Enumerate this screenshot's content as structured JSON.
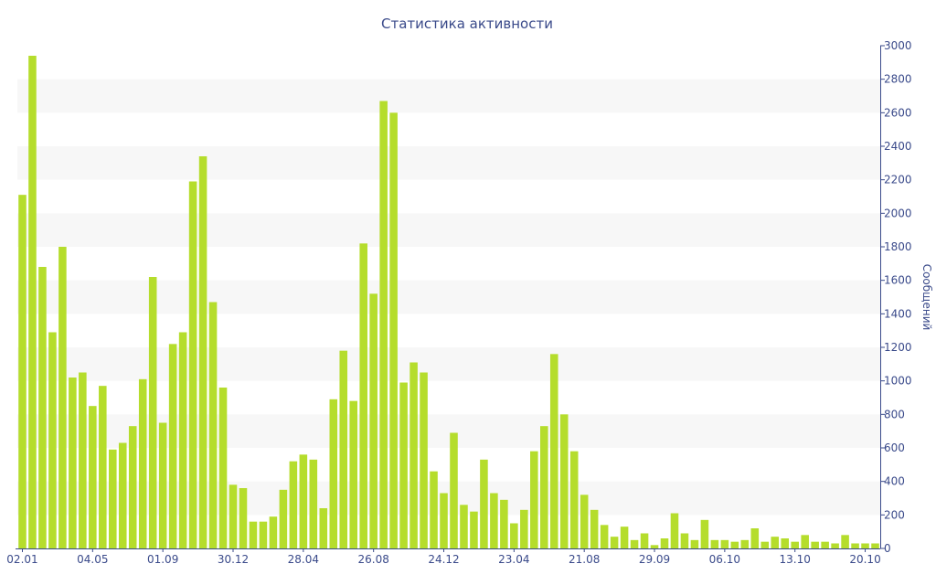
{
  "chart_data": {
    "type": "bar",
    "title": "Статистика активности",
    "xlabel": "",
    "ylabel": "Сообщений",
    "y_axis_side": "right",
    "ylim": [
      0,
      3000
    ],
    "yticks": [
      0,
      200,
      400,
      600,
      800,
      1000,
      1200,
      1400,
      1600,
      1800,
      2000,
      2200,
      2400,
      2600,
      2800,
      3000
    ],
    "x_tick_labels": [
      {
        "label": "02.01",
        "index": 0
      },
      {
        "label": "04.05",
        "index": 7
      },
      {
        "label": "01.09",
        "index": 14
      },
      {
        "label": "30.12",
        "index": 21
      },
      {
        "label": "28.04",
        "index": 28
      },
      {
        "label": "26.08",
        "index": 35
      },
      {
        "label": "24.12",
        "index": 42
      },
      {
        "label": "23.04",
        "index": 49
      },
      {
        "label": "21.08",
        "index": 56
      },
      {
        "label": "29.09",
        "index": 63
      },
      {
        "label": "06.10",
        "index": 70
      },
      {
        "label": "13.10",
        "index": 77
      },
      {
        "label": "20.10",
        "index": 84
      }
    ],
    "values": [
      2110,
      2940,
      1680,
      1290,
      1800,
      1020,
      1050,
      850,
      970,
      590,
      630,
      730,
      1010,
      1620,
      750,
      1220,
      1290,
      2190,
      2340,
      1470,
      960,
      380,
      360,
      160,
      160,
      190,
      350,
      520,
      560,
      530,
      240,
      890,
      1180,
      880,
      1820,
      1520,
      2670,
      2600,
      990,
      1110,
      1050,
      460,
      330,
      690,
      260,
      220,
      530,
      330,
      290,
      150,
      230,
      580,
      730,
      1160,
      800,
      580,
      320,
      230,
      140,
      70,
      130,
      50,
      90,
      20,
      60,
      210,
      90,
      50,
      170,
      50,
      50,
      40,
      50,
      120,
      40,
      70,
      60,
      40,
      80,
      40,
      40,
      30,
      80,
      30,
      30,
      30
    ],
    "bar_color": "#b5dd2c",
    "grid": "alternating horizontal bands",
    "band_color": "#f7f7f7",
    "axis_color": "#3a4a8a"
  }
}
